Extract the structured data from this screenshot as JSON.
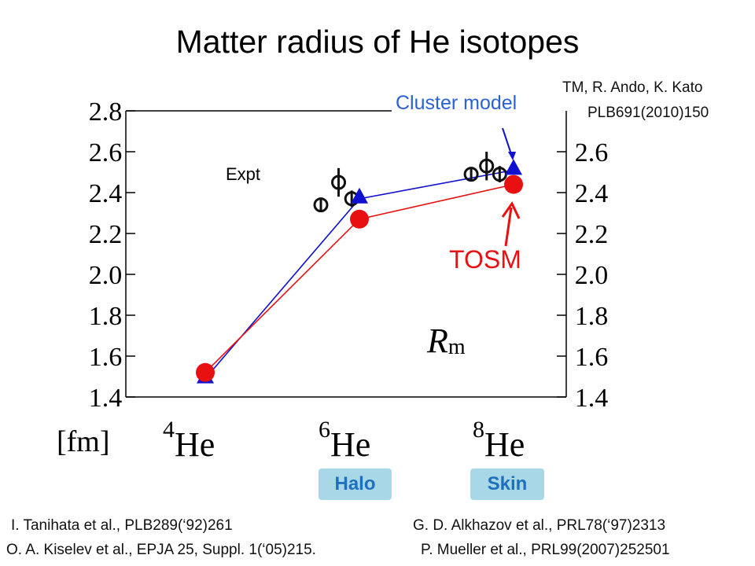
{
  "title": "Matter radius of He isotopes",
  "citation": {
    "line1": "TM, R. Ando, K. Kato",
    "line2": "PLB691(2010)150"
  },
  "labels": {
    "cluster_model": "Cluster model",
    "tosm": "TOSM",
    "expt": "Expt",
    "rm_main": "R",
    "rm_sub": "m",
    "unit": "[fm]",
    "halo": "Halo",
    "skin": "Skin"
  },
  "references": [
    "I. Tanihata et al., PLB289(‘92)261",
    "G. D. Alkhazov et al., PRL78(‘97)2313",
    "O. A. Kiselev et al., EPJA 25, Suppl. 1(‘05)215.",
    "P. Mueller et al., PRL99(2007)252501"
  ],
  "colors": {
    "cluster": "#1010d0",
    "tosm": "#e81010",
    "cluster_label": "#2a62d6",
    "badge_bg": "#a8d8e8"
  },
  "chart_data": {
    "type": "line",
    "categories": [
      {
        "mass": "4",
        "symbol": "He"
      },
      {
        "mass": "6",
        "symbol": "He"
      },
      {
        "mass": "8",
        "symbol": "He"
      }
    ],
    "ylim": [
      1.4,
      2.8
    ],
    "yticks_left": [
      "1.4",
      "1.6",
      "1.8",
      "2.0",
      "2.2",
      "2.4",
      "2.6",
      "2.8"
    ],
    "yticks_right": [
      "1.4",
      "1.6",
      "1.8",
      "2.0",
      "2.2",
      "2.4",
      "2.6"
    ],
    "series": [
      {
        "name": "Cluster model",
        "marker": "triangle",
        "values": [
          1.49,
          2.37,
          2.51
        ]
      },
      {
        "name": "TOSM",
        "marker": "circle",
        "values": [
          1.52,
          2.27,
          2.44
        ]
      }
    ],
    "experiment": {
      "name": "Expt",
      "points": [
        {
          "x": 5.5,
          "y": 2.34,
          "err": 0.03
        },
        {
          "x": 5.73,
          "y": 2.45,
          "err": 0.07
        },
        {
          "x": 5.9,
          "y": 2.37,
          "err": 0.04
        },
        {
          "x": 7.45,
          "y": 2.49,
          "err": 0.03
        },
        {
          "x": 7.65,
          "y": 2.53,
          "err": 0.07
        },
        {
          "x": 7.82,
          "y": 2.49,
          "err": 0.04
        }
      ]
    }
  }
}
